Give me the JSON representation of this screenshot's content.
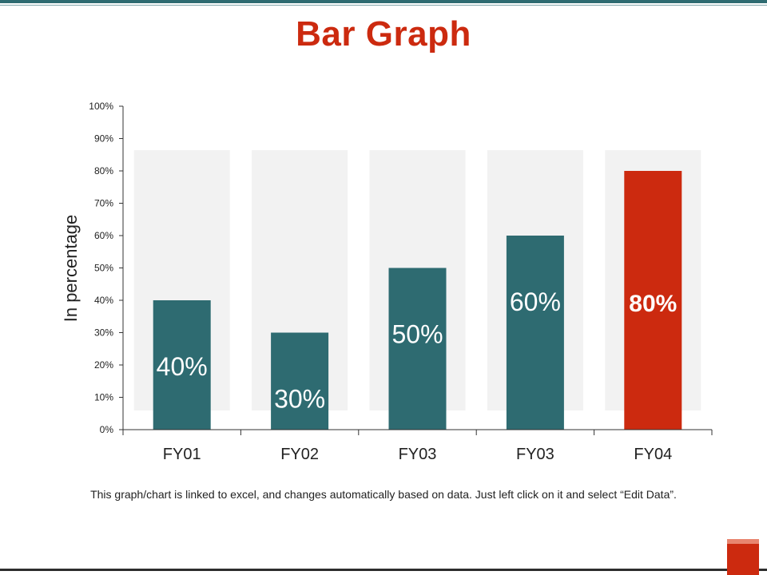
{
  "slide": {
    "title": "Bar Graph",
    "footnote": "This graph/chart is linked to excel, and changes automatically based on data. Just left click on it and select “Edit Data”.",
    "colors": {
      "accent": "#cc2a0f",
      "teal": "#2e6b71",
      "band": "#f2f2f2"
    }
  },
  "chart_data": {
    "type": "bar",
    "title": "",
    "xlabel": "",
    "ylabel": "In percentage",
    "categories": [
      "FY01",
      "FY02",
      "FY03",
      "FY03",
      "FY04"
    ],
    "values": [
      40,
      30,
      50,
      60,
      80
    ],
    "data_labels": [
      "40%",
      "30%",
      "50%",
      "60%",
      "80%"
    ],
    "bar_colors": [
      "#2e6b71",
      "#2e6b71",
      "#2e6b71",
      "#2e6b71",
      "#cc2a0f"
    ],
    "highlight_index": 4,
    "ylim": [
      0,
      100
    ],
    "yticks": [
      0,
      10,
      20,
      30,
      40,
      50,
      60,
      70,
      80,
      90,
      100
    ],
    "ytick_labels": [
      "0%",
      "10%",
      "20%",
      "30%",
      "40%",
      "50%",
      "60%",
      "70%",
      "80%",
      "90%",
      "100%"
    ],
    "grid": false,
    "legend": "none"
  }
}
